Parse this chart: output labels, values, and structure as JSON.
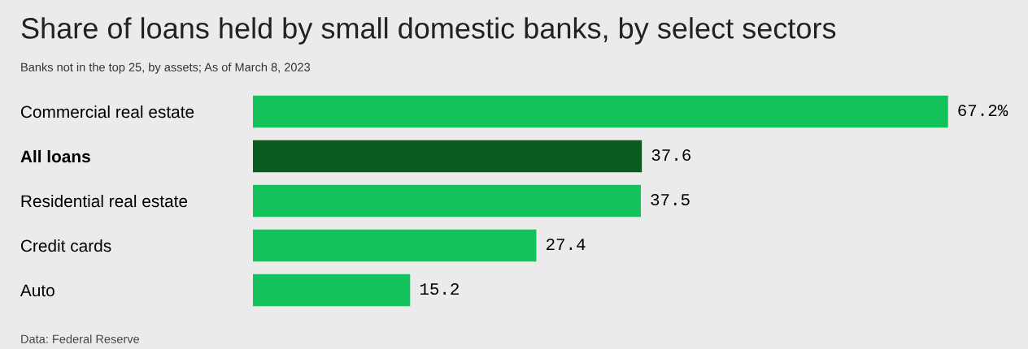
{
  "chart_data": {
    "type": "bar",
    "orientation": "horizontal",
    "title": "Share of loans held by small domestic banks, by select sectors",
    "subtitle": "Banks not in the top 25, by assets; As of March 8, 2023",
    "categories": [
      "Commercial real estate",
      "All loans",
      "Residential real estate",
      "Credit cards",
      "Auto"
    ],
    "values": [
      67.2,
      37.6,
      37.5,
      27.4,
      15.2
    ],
    "value_labels": [
      "67.2%",
      "37.6",
      "37.5",
      "27.4",
      "15.2"
    ],
    "colors": [
      "#13c25a",
      "#0b5a1f",
      "#13c25a",
      "#13c25a",
      "#13c25a"
    ],
    "annotations": [
      "Data: Federal Reserve"
    ],
    "grid": false,
    "legend": false
  }
}
